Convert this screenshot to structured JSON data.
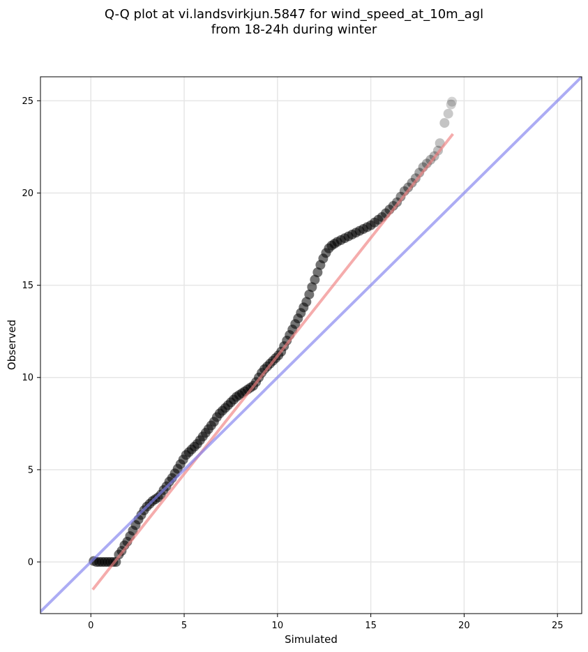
{
  "title": {
    "line1": "Q-Q plot at vi.landsvirkjun.5847 for wind_speed_at_10m_agl",
    "line2": "from 18-24h during winter"
  },
  "chart_data": {
    "type": "scatter",
    "xlabel": "Simulated",
    "ylabel": "Observed",
    "xlim": [
      -2.7,
      26.3
    ],
    "ylim": [
      -2.8,
      26.3
    ],
    "xticks": [
      0,
      5,
      10,
      15,
      20,
      25
    ],
    "yticks": [
      0,
      5,
      10,
      15,
      20,
      25
    ],
    "xtick_labels": [
      "0",
      "5",
      "10",
      "15",
      "20",
      "25"
    ],
    "ytick_labels": [
      "0",
      "5",
      "10",
      "15",
      "20",
      "25"
    ],
    "grid": true,
    "colors": {
      "points": "#000000",
      "fit_line": "#f08080",
      "identity_line": "#8080ee"
    },
    "identity_line": {
      "x": [
        -2.7,
        26.3
      ],
      "y": [
        -2.7,
        26.3
      ]
    },
    "fit_line": {
      "x": [
        0.1,
        19.4
      ],
      "y": [
        -1.5,
        23.2
      ]
    },
    "points": {
      "x": [
        0.15,
        0.3,
        0.45,
        0.6,
        0.75,
        0.9,
        1.05,
        1.2,
        1.35,
        1.5,
        1.65,
        1.8,
        1.95,
        2.1,
        2.25,
        2.4,
        2.55,
        2.7,
        2.85,
        3.0,
        3.15,
        3.3,
        3.45,
        3.6,
        3.75,
        3.9,
        4.05,
        4.2,
        4.35,
        4.5,
        4.65,
        4.8,
        4.95,
        5.1,
        5.25,
        5.4,
        5.55,
        5.7,
        5.85,
        6.0,
        6.15,
        6.3,
        6.45,
        6.6,
        6.75,
        6.9,
        7.05,
        7.2,
        7.35,
        7.5,
        7.65,
        7.8,
        7.95,
        8.1,
        8.25,
        8.4,
        8.55,
        8.7,
        8.85,
        9.0,
        9.15,
        9.3,
        9.45,
        9.6,
        9.75,
        9.9,
        10.05,
        10.2,
        10.35,
        10.5,
        10.65,
        10.8,
        10.95,
        11.1,
        11.25,
        11.4,
        11.55,
        11.7,
        11.85,
        12.0,
        12.15,
        12.3,
        12.45,
        12.6,
        12.75,
        12.9,
        13.05,
        13.2,
        13.4,
        13.6,
        13.8,
        14.0,
        14.2,
        14.4,
        14.6,
        14.8,
        15.0,
        15.2,
        15.4,
        15.6,
        15.8,
        16.0,
        16.2,
        16.4,
        16.6,
        16.8,
        17.0,
        17.2,
        17.4,
        17.6,
        17.8,
        18.0,
        18.2,
        18.4,
        18.6,
        18.7,
        18.95,
        19.15,
        19.3,
        19.35
      ],
      "y": [
        0.05,
        0.0,
        0.0,
        0.0,
        0.0,
        0.0,
        0.0,
        0.0,
        0.0,
        0.4,
        0.6,
        0.9,
        1.1,
        1.4,
        1.7,
        2.0,
        2.3,
        2.55,
        2.8,
        3.0,
        3.15,
        3.3,
        3.4,
        3.5,
        3.65,
        3.9,
        4.1,
        4.35,
        4.55,
        4.8,
        5.05,
        5.3,
        5.55,
        5.8,
        5.95,
        6.1,
        6.25,
        6.4,
        6.6,
        6.8,
        7.0,
        7.2,
        7.4,
        7.6,
        7.85,
        8.05,
        8.2,
        8.35,
        8.5,
        8.65,
        8.8,
        8.95,
        9.05,
        9.15,
        9.25,
        9.35,
        9.45,
        9.55,
        9.75,
        10.0,
        10.25,
        10.45,
        10.6,
        10.75,
        10.9,
        11.05,
        11.2,
        11.4,
        11.7,
        12.0,
        12.3,
        12.6,
        12.9,
        13.2,
        13.5,
        13.8,
        14.1,
        14.5,
        14.9,
        15.3,
        15.7,
        16.1,
        16.45,
        16.75,
        17.0,
        17.15,
        17.25,
        17.35,
        17.45,
        17.55,
        17.65,
        17.75,
        17.85,
        17.95,
        18.05,
        18.15,
        18.25,
        18.4,
        18.55,
        18.7,
        18.9,
        19.1,
        19.3,
        19.5,
        19.8,
        20.1,
        20.3,
        20.55,
        20.8,
        21.1,
        21.4,
        21.6,
        21.8,
        22.0,
        22.3,
        22.7,
        23.8,
        24.3,
        24.8,
        24.95
      ]
    }
  }
}
